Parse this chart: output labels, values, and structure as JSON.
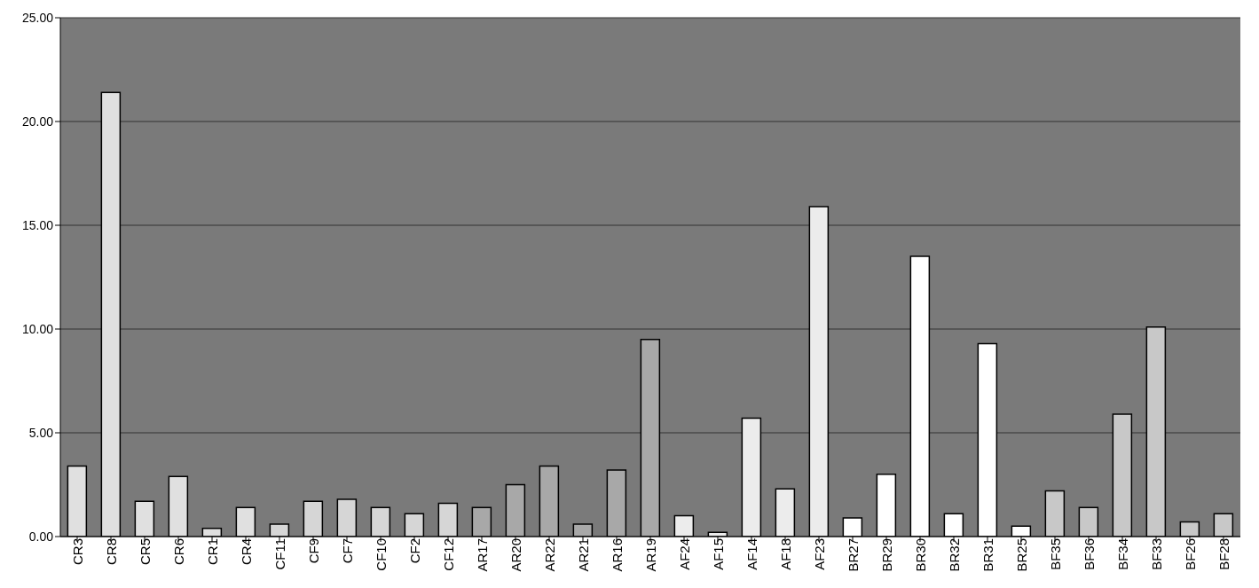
{
  "chart_data": {
    "type": "bar",
    "categories": [
      "CR3",
      "CR8",
      "CR5",
      "CR6",
      "CR1",
      "CR4",
      "CF11",
      "CF9",
      "CF7",
      "CF10",
      "CF2",
      "CF12",
      "AR17",
      "AR20",
      "AR22",
      "AR21",
      "AR16",
      "AR19",
      "AF24",
      "AF15",
      "AF14",
      "AF18",
      "AF23",
      "BR27",
      "BR29",
      "BR30",
      "BR32",
      "BR31",
      "BR25",
      "BF35",
      "BF36",
      "BF34",
      "BF33",
      "BF26",
      "BF28"
    ],
    "values": [
      3.4,
      21.4,
      1.7,
      2.9,
      0.4,
      1.4,
      0.6,
      1.7,
      1.8,
      1.4,
      1.1,
      1.6,
      1.4,
      2.5,
      3.4,
      0.6,
      3.2,
      9.5,
      1.0,
      0.2,
      5.7,
      2.3,
      15.9,
      0.9,
      3.0,
      13.5,
      1.1,
      9.3,
      0.5,
      2.2,
      1.4,
      5.9,
      10.1,
      0.7,
      1.1
    ],
    "colors": [
      "#e0e0e0",
      "#e0e0e0",
      "#e0e0e0",
      "#e0e0e0",
      "#e0e0e0",
      "#e0e0e0",
      "#d6d6d6",
      "#d6d6d6",
      "#d6d6d6",
      "#d6d6d6",
      "#d6d6d6",
      "#d6d6d6",
      "#a8a8a8",
      "#a8a8a8",
      "#a8a8a8",
      "#a8a8a8",
      "#a8a8a8",
      "#a8a8a8",
      "#ececec",
      "#ececec",
      "#ececec",
      "#ececec",
      "#ececec",
      "#ffffff",
      "#ffffff",
      "#ffffff",
      "#ffffff",
      "#ffffff",
      "#ffffff",
      "#c8c8c8",
      "#c8c8c8",
      "#c8c8c8",
      "#c8c8c8",
      "#c8c8c8",
      "#c8c8c8"
    ],
    "ylim": [
      0,
      25
    ],
    "yticks": [
      {
        "value": 0,
        "label": "0.00"
      },
      {
        "value": 5,
        "label": "5.00"
      },
      {
        "value": 10,
        "label": "10.00"
      },
      {
        "value": 15,
        "label": "15.00"
      },
      {
        "value": 20,
        "label": "20.00"
      },
      {
        "value": 25,
        "label": "25.00"
      }
    ],
    "grid": "y"
  }
}
